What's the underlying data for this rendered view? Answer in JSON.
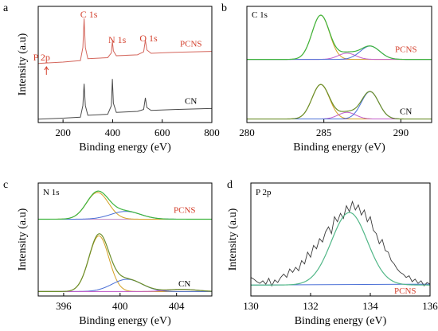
{
  "chart_data": [
    {
      "panel": "a",
      "type": "line",
      "xlabel": "Binding energy (eV)",
      "ylabel": "Intensity (a.u)",
      "xlim": [
        100,
        800
      ],
      "x_ticks": [
        200,
        400,
        600,
        800
      ],
      "annotations": [
        {
          "text": "P 2p",
          "x": 133
        },
        {
          "text": "C 1s",
          "x": 285
        },
        {
          "text": "N 1s",
          "x": 399
        },
        {
          "text": "O 1s",
          "x": 532
        }
      ],
      "series": [
        {
          "name": "PCNS",
          "color": "#d4665c",
          "label_color": "#d4412e",
          "offset": 1.15,
          "x": [
            100,
            133,
            200,
            270,
            280,
            285,
            290,
            300,
            380,
            395,
            399,
            403,
            415,
            500,
            525,
            532,
            538,
            555,
            650,
            800
          ],
          "values": [
            0.02,
            0.03,
            0.05,
            0.08,
            0.35,
            0.95,
            0.35,
            0.12,
            0.14,
            0.24,
            0.48,
            0.28,
            0.18,
            0.2,
            0.26,
            0.5,
            0.3,
            0.23,
            0.25,
            0.27
          ]
        },
        {
          "name": "CN",
          "color": "#4a4a4a",
          "label_color": "#000000",
          "offset": 0.0,
          "x": [
            100,
            200,
            270,
            280,
            285,
            290,
            300,
            380,
            395,
            399,
            403,
            415,
            500,
            525,
            532,
            538,
            555,
            650,
            800
          ],
          "values": [
            0.02,
            0.04,
            0.06,
            0.3,
            0.75,
            0.3,
            0.1,
            0.12,
            0.3,
            0.85,
            0.35,
            0.16,
            0.18,
            0.22,
            0.46,
            0.26,
            0.2,
            0.22,
            0.24
          ]
        }
      ]
    },
    {
      "panel": "b",
      "type": "line",
      "title": "C 1s",
      "xlabel": "Binding energy (eV)",
      "xlim": [
        280,
        292
      ],
      "x_ticks": [
        280,
        285,
        290
      ],
      "series": [
        {
          "name": "PCNS",
          "label_color": "#d4412e",
          "offset": 1.35,
          "baseline": 0.0,
          "peaks": [
            {
              "center": 284.8,
              "height": 1.0,
              "width": 0.8,
              "color": "#d4a020"
            },
            {
              "center": 286.5,
              "height": 0.14,
              "width": 0.8,
              "color": "#c25ac9"
            },
            {
              "center": 288.0,
              "height": 0.3,
              "width": 0.9,
              "color": "#4a6fd6"
            }
          ],
          "envelope_color": "#3db43d"
        },
        {
          "name": "CN",
          "label_color": "#000000",
          "offset": 0.0,
          "baseline": 0.0,
          "peaks": [
            {
              "center": 284.8,
              "height": 0.78,
              "width": 0.8,
              "color": "#d4a020"
            },
            {
              "center": 286.5,
              "height": 0.15,
              "width": 0.8,
              "color": "#c25ac9"
            },
            {
              "center": 288.0,
              "height": 0.62,
              "width": 0.8,
              "color": "#4a6fd6"
            }
          ],
          "envelope_color": "#6b8e2a"
        }
      ]
    },
    {
      "panel": "c",
      "type": "line",
      "title": "N 1s",
      "xlabel": "Binding energy (eV)",
      "ylabel": "Intensity (a.u)",
      "xlim": [
        394.2,
        406.5
      ],
      "x_ticks": [
        396,
        400,
        404
      ],
      "series": [
        {
          "name": "PCNS",
          "label_color": "#d4412e",
          "offset": 1.3,
          "baseline": 0.0,
          "peaks": [
            {
              "center": 398.4,
              "height": 0.48,
              "width": 1.1,
              "color": "#d4a020"
            },
            {
              "center": 400.4,
              "height": 0.14,
              "width": 1.5,
              "color": "#4a6fd6"
            }
          ],
          "envelope_color": "#3db43d"
        },
        {
          "name": "CN",
          "label_color": "#000000",
          "offset": 0.0,
          "baseline": 0.0,
          "peaks": [
            {
              "center": 398.5,
              "height": 1.0,
              "width": 1.0,
              "color": "#d4a020"
            },
            {
              "center": 400.5,
              "height": 0.22,
              "width": 1.5,
              "color": "#4a6fd6"
            },
            {
              "center": 404.4,
              "height": 0.04,
              "width": 1.5,
              "color": "#c25ac9"
            }
          ],
          "envelope_color": "#6b8e2a"
        }
      ]
    },
    {
      "panel": "d",
      "type": "line",
      "title": "P 2p",
      "xlabel": "Binding energy (eV)",
      "ylabel": "Intensity (a.u)",
      "xlim": [
        130,
        136
      ],
      "x_ticks": [
        130,
        132,
        134,
        136
      ],
      "series": [
        {
          "name": "PCNS",
          "label_color": "#d4412e",
          "raw": {
            "color": "#3a3a3a",
            "x": [
              130.0,
              130.1,
              130.2,
              130.3,
              130.4,
              130.5,
              130.6,
              130.7,
              130.8,
              130.9,
              131.0,
              131.1,
              131.2,
              131.3,
              131.4,
              131.5,
              131.6,
              131.7,
              131.8,
              131.9,
              132.0,
              132.1,
              132.2,
              132.3,
              132.4,
              132.5,
              132.6,
              132.7,
              132.8,
              132.9,
              133.0,
              133.1,
              133.2,
              133.3,
              133.4,
              133.5,
              133.6,
              133.7,
              133.8,
              133.9,
              134.0,
              134.1,
              134.2,
              134.3,
              134.4,
              134.5,
              134.6,
              134.7,
              134.8,
              134.9,
              135.0,
              135.1,
              135.2,
              135.3,
              135.4,
              135.5,
              135.6,
              135.7,
              135.8,
              135.9,
              136.0
            ],
            "values": [
              0.1,
              0.08,
              0.05,
              0.03,
              0.06,
              0.02,
              0.09,
              0.0,
              0.07,
              0.04,
              0.1,
              0.14,
              0.1,
              0.2,
              0.16,
              0.22,
              0.18,
              0.3,
              0.26,
              0.4,
              0.34,
              0.48,
              0.44,
              0.56,
              0.52,
              0.64,
              0.7,
              0.62,
              0.82,
              0.76,
              0.86,
              0.8,
              0.95,
              0.88,
              1.0,
              0.9,
              0.96,
              0.84,
              0.9,
              0.76,
              0.82,
              0.66,
              0.62,
              0.5,
              0.55,
              0.42,
              0.4,
              0.3,
              0.26,
              0.2,
              0.16,
              0.14,
              0.1,
              0.12,
              0.05,
              0.08,
              0.03,
              0.06,
              0.0,
              0.04,
              0.02
            ]
          },
          "fit": {
            "color": "#52b788",
            "center": 133.3,
            "height": 0.86,
            "width": 0.85
          },
          "baseline": {
            "color": "#4a6fd6",
            "start": 0.01,
            "end": 0.02
          }
        }
      ]
    }
  ]
}
